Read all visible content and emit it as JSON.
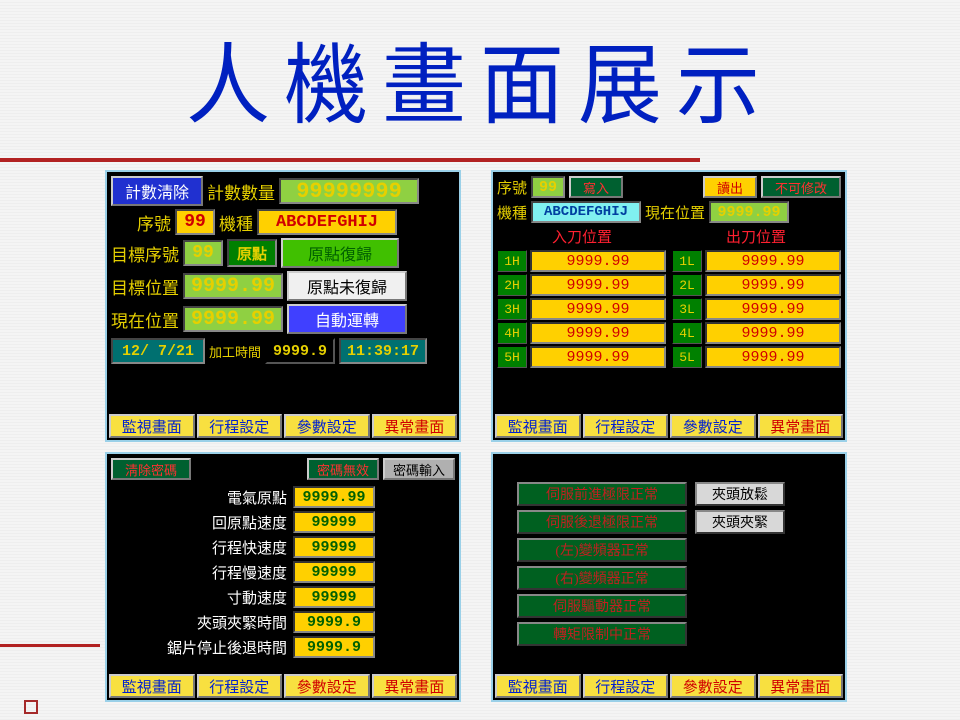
{
  "title": "人機畫面展示",
  "tabs": {
    "monitor": "監視畫面",
    "stroke": "行程設定",
    "param": "參數設定",
    "alarm": "異常畫面"
  },
  "p1": {
    "count_clear": "計數淸除",
    "count_qty": "計數數量",
    "count_val": "99999999",
    "seq": "序號",
    "seq_val": "99",
    "model": "機種",
    "model_val": "ABCDEFGHIJ",
    "target_seq": "目標序號",
    "target_seq_val": "99",
    "origin_pt": "原點",
    "origin_return": "原點復歸",
    "target_pos": "目標位置",
    "target_pos_val": "9999.99",
    "origin_not": "原點未復歸",
    "now_pos": "現在位置",
    "now_pos_val": "9999.99",
    "auto_run": "自動運轉",
    "date": "12/ 7/21",
    "work_time_lbl": "加工時間",
    "work_time": "9999.9",
    "clock": "11:39:17"
  },
  "p2": {
    "seq_l": "序號",
    "seq_v": "99",
    "write": "寫入",
    "read": "讀出",
    "nomod": "不可修改",
    "model_l": "機種",
    "model_v": "ABCDEFGHIJ",
    "now_pos_l": "現在位置",
    "now_pos_v": "9999.99",
    "in_pos": "入刀位置",
    "out_pos": "出刀位置",
    "tags_h": [
      "1H",
      "2H",
      "3H",
      "4H",
      "5H"
    ],
    "tags_l": [
      "1L",
      "2L",
      "3L",
      "4L",
      "5L"
    ],
    "val": "9999.99"
  },
  "p3": {
    "clear_pw": "淸除密碼",
    "pw_invalid": "密碼無效",
    "pw_input": "密碼輸入",
    "params": [
      {
        "l": "電氣原點",
        "v": "9999.99"
      },
      {
        "l": "回原點速度",
        "v": "99999"
      },
      {
        "l": "行程快速度",
        "v": "99999"
      },
      {
        "l": "行程慢速度",
        "v": "99999"
      },
      {
        "l": "寸動速度",
        "v": "99999"
      },
      {
        "l": "夾頭夾緊時間",
        "v": "9999.9"
      },
      {
        "l": "鋸片停止後退時間",
        "v": "9999.9"
      }
    ]
  },
  "p4": {
    "status": [
      "伺服前進極限正常",
      "伺服後退極限正常",
      "(左)變頻器正常",
      "(右)變頻器正常",
      "伺服驅動器正常",
      "轉矩限制中正常"
    ],
    "chuck_release": "夾頭放鬆",
    "chuck_clamp": "夾頭夾緊"
  }
}
